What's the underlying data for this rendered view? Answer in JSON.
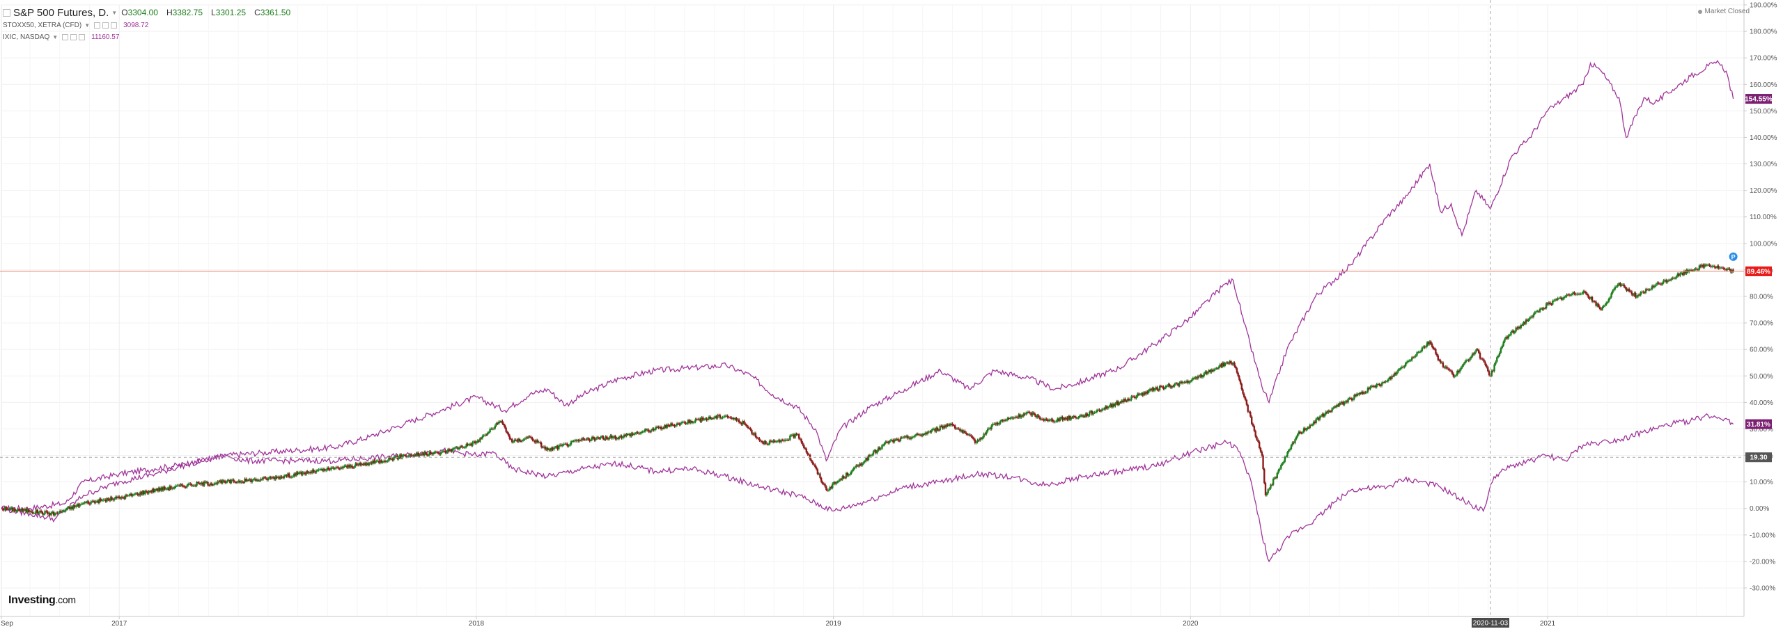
{
  "legend": {
    "main": {
      "symbol": "S&P 500 Futures, D",
      "open_key": "O",
      "open": "3304.00",
      "high_key": "H",
      "high": "3382.75",
      "low_key": "L",
      "low": "3301.25",
      "close_key": "C",
      "close": "3361.50"
    },
    "compare": [
      {
        "symbol": "STOXX50, XETRA (CFD)",
        "value": "3098.72"
      },
      {
        "symbol": "IXIC, NASDAQ",
        "value": "11160.57"
      }
    ]
  },
  "market_status": "Market Closed",
  "watermark": {
    "brand": "Investing",
    "domain": ".com"
  },
  "crosshair_date": "2020-11-03",
  "colors": {
    "compare_line": "#a0339a",
    "candle_up": "#1b7d1b",
    "candle_down": "#8b1a1a",
    "last_price_line": "#e8907a",
    "red_badge": "#e81b1b",
    "purple_badge": "#7d1f72",
    "gray_badge": "#555555"
  },
  "chart_data": {
    "type": "line",
    "y_unit": "%",
    "ylim": [
      -30,
      190
    ],
    "y_ticks": [
      "190.00%",
      "180.00%",
      "170.00%",
      "160.00%",
      "150.00%",
      "140.00%",
      "130.00%",
      "120.00%",
      "110.00%",
      "100.00%",
      "90.00%",
      "80.00%",
      "70.00%",
      "60.00%",
      "50.00%",
      "40.00%",
      "30.00%",
      "20.00%",
      "10.00%",
      "0.00%",
      "-10.00%",
      "-20.00%",
      "-30.00%"
    ],
    "x_range": [
      2016.67,
      2021.55
    ],
    "x_ticks": [
      {
        "t": 2016.67,
        "label": "Sep"
      },
      {
        "t": 2017.0,
        "label": "2017"
      },
      {
        "t": 2018.0,
        "label": "2018"
      },
      {
        "t": 2019.0,
        "label": "2019"
      },
      {
        "t": 2020.0,
        "label": "2020"
      },
      {
        "t": 2021.0,
        "label": "2021"
      }
    ],
    "grid": true,
    "series": [
      {
        "name": "IXIC, NASDAQ",
        "style": "line",
        "points": [
          [
            2016.67,
            0
          ],
          [
            2016.75,
            0
          ],
          [
            2016.85,
            2
          ],
          [
            2016.9,
            10
          ],
          [
            2017.0,
            13
          ],
          [
            2017.1,
            15
          ],
          [
            2017.2,
            17
          ],
          [
            2017.3,
            20
          ],
          [
            2017.4,
            21
          ],
          [
            2017.5,
            22
          ],
          [
            2017.6,
            23
          ],
          [
            2017.7,
            27
          ],
          [
            2017.8,
            32
          ],
          [
            2017.9,
            37
          ],
          [
            2018.0,
            42
          ],
          [
            2018.08,
            37
          ],
          [
            2018.15,
            43
          ],
          [
            2018.2,
            45
          ],
          [
            2018.25,
            39
          ],
          [
            2018.3,
            43
          ],
          [
            2018.4,
            49
          ],
          [
            2018.5,
            52
          ],
          [
            2018.6,
            53
          ],
          [
            2018.7,
            54
          ],
          [
            2018.77,
            50
          ],
          [
            2018.83,
            43
          ],
          [
            2018.9,
            38
          ],
          [
            2018.95,
            30
          ],
          [
            2018.98,
            18
          ],
          [
            2019.02,
            30
          ],
          [
            2019.1,
            38
          ],
          [
            2019.2,
            45
          ],
          [
            2019.3,
            52
          ],
          [
            2019.38,
            45
          ],
          [
            2019.45,
            52
          ],
          [
            2019.55,
            49
          ],
          [
            2019.62,
            45
          ],
          [
            2019.7,
            48
          ],
          [
            2019.8,
            53
          ],
          [
            2019.9,
            62
          ],
          [
            2020.0,
            72
          ],
          [
            2020.1,
            85
          ],
          [
            2020.12,
            86
          ],
          [
            2020.15,
            70
          ],
          [
            2020.2,
            46
          ],
          [
            2020.22,
            40
          ],
          [
            2020.27,
            60
          ],
          [
            2020.35,
            80
          ],
          [
            2020.45,
            92
          ],
          [
            2020.55,
            110
          ],
          [
            2020.6,
            117
          ],
          [
            2020.67,
            130
          ],
          [
            2020.7,
            112
          ],
          [
            2020.73,
            115
          ],
          [
            2020.76,
            103
          ],
          [
            2020.8,
            120
          ],
          [
            2020.84,
            113
          ],
          [
            2020.9,
            133
          ],
          [
            2020.95,
            140
          ],
          [
            2021.0,
            150
          ],
          [
            2021.05,
            155
          ],
          [
            2021.1,
            160
          ],
          [
            2021.12,
            168
          ],
          [
            2021.15,
            165
          ],
          [
            2021.2,
            155
          ],
          [
            2021.22,
            140
          ],
          [
            2021.27,
            155
          ],
          [
            2021.3,
            153
          ],
          [
            2021.35,
            158
          ],
          [
            2021.4,
            163
          ],
          [
            2021.45,
            167
          ],
          [
            2021.48,
            168
          ],
          [
            2021.5,
            165
          ],
          [
            2021.52,
            154.55
          ]
        ]
      },
      {
        "name": "S&P 500 Futures",
        "style": "candles",
        "points": [
          [
            2016.67,
            0
          ],
          [
            2016.75,
            -1
          ],
          [
            2016.82,
            -2
          ],
          [
            2016.9,
            2
          ],
          [
            2017.0,
            4
          ],
          [
            2017.1,
            7
          ],
          [
            2017.2,
            9
          ],
          [
            2017.3,
            10
          ],
          [
            2017.4,
            11
          ],
          [
            2017.5,
            13
          ],
          [
            2017.6,
            15
          ],
          [
            2017.7,
            17
          ],
          [
            2017.8,
            20
          ],
          [
            2017.9,
            21
          ],
          [
            2018.0,
            25
          ],
          [
            2018.07,
            33
          ],
          [
            2018.1,
            25
          ],
          [
            2018.15,
            27
          ],
          [
            2018.2,
            22
          ],
          [
            2018.3,
            26
          ],
          [
            2018.4,
            27
          ],
          [
            2018.5,
            30
          ],
          [
            2018.6,
            33
          ],
          [
            2018.7,
            35
          ],
          [
            2018.75,
            32
          ],
          [
            2018.8,
            25
          ],
          [
            2018.85,
            25
          ],
          [
            2018.9,
            28
          ],
          [
            2018.98,
            7
          ],
          [
            2019.05,
            14
          ],
          [
            2019.15,
            25
          ],
          [
            2019.25,
            28
          ],
          [
            2019.33,
            32
          ],
          [
            2019.4,
            25
          ],
          [
            2019.45,
            32
          ],
          [
            2019.55,
            36
          ],
          [
            2019.6,
            33
          ],
          [
            2019.7,
            35
          ],
          [
            2019.8,
            40
          ],
          [
            2019.9,
            45
          ],
          [
            2020.0,
            48
          ],
          [
            2020.1,
            55
          ],
          [
            2020.12,
            55
          ],
          [
            2020.15,
            42
          ],
          [
            2020.2,
            20
          ],
          [
            2020.21,
            5
          ],
          [
            2020.25,
            15
          ],
          [
            2020.3,
            28
          ],
          [
            2020.4,
            38
          ],
          [
            2020.5,
            45
          ],
          [
            2020.55,
            48
          ],
          [
            2020.62,
            57
          ],
          [
            2020.67,
            63
          ],
          [
            2020.7,
            55
          ],
          [
            2020.74,
            50
          ],
          [
            2020.8,
            60
          ],
          [
            2020.84,
            50
          ],
          [
            2020.88,
            64
          ],
          [
            2020.95,
            72
          ],
          [
            2021.0,
            77
          ],
          [
            2021.05,
            80
          ],
          [
            2021.1,
            82
          ],
          [
            2021.15,
            75
          ],
          [
            2021.2,
            85
          ],
          [
            2021.25,
            80
          ],
          [
            2021.3,
            84
          ],
          [
            2021.35,
            87
          ],
          [
            2021.4,
            90
          ],
          [
            2021.45,
            92
          ],
          [
            2021.5,
            90
          ],
          [
            2021.52,
            89.46
          ]
        ]
      },
      {
        "name": "STOXX50, XETRA (CFD)",
        "style": "line",
        "points": [
          [
            2016.67,
            0
          ],
          [
            2016.75,
            -2
          ],
          [
            2016.82,
            -4
          ],
          [
            2016.9,
            5
          ],
          [
            2017.0,
            10
          ],
          [
            2017.1,
            13
          ],
          [
            2017.2,
            17
          ],
          [
            2017.3,
            20
          ],
          [
            2017.35,
            18
          ],
          [
            2017.5,
            18
          ],
          [
            2017.6,
            18
          ],
          [
            2017.7,
            19
          ],
          [
            2017.8,
            20
          ],
          [
            2017.9,
            22
          ],
          [
            2018.0,
            20
          ],
          [
            2018.05,
            21
          ],
          [
            2018.1,
            15
          ],
          [
            2018.2,
            12
          ],
          [
            2018.3,
            15
          ],
          [
            2018.4,
            17
          ],
          [
            2018.5,
            14
          ],
          [
            2018.6,
            15
          ],
          [
            2018.7,
            12
          ],
          [
            2018.8,
            8
          ],
          [
            2018.9,
            5
          ],
          [
            2019.0,
            -1
          ],
          [
            2019.1,
            3
          ],
          [
            2019.2,
            8
          ],
          [
            2019.3,
            10
          ],
          [
            2019.4,
            13
          ],
          [
            2019.5,
            12
          ],
          [
            2019.55,
            10
          ],
          [
            2019.6,
            9
          ],
          [
            2019.7,
            12
          ],
          [
            2019.8,
            14
          ],
          [
            2019.9,
            16
          ],
          [
            2020.0,
            21
          ],
          [
            2020.1,
            25
          ],
          [
            2020.13,
            23
          ],
          [
            2020.17,
            10
          ],
          [
            2020.2,
            -10
          ],
          [
            2020.22,
            -20
          ],
          [
            2020.28,
            -10
          ],
          [
            2020.35,
            -4
          ],
          [
            2020.4,
            2
          ],
          [
            2020.45,
            7
          ],
          [
            2020.55,
            8
          ],
          [
            2020.6,
            11
          ],
          [
            2020.65,
            10
          ],
          [
            2020.7,
            8
          ],
          [
            2020.75,
            4
          ],
          [
            2020.82,
            -1
          ],
          [
            2020.85,
            12
          ],
          [
            2020.9,
            16
          ],
          [
            2020.95,
            18
          ],
          [
            2021.0,
            20
          ],
          [
            2021.05,
            18
          ],
          [
            2021.1,
            24
          ],
          [
            2021.15,
            25
          ],
          [
            2021.2,
            26
          ],
          [
            2021.3,
            30
          ],
          [
            2021.35,
            32
          ],
          [
            2021.4,
            33
          ],
          [
            2021.45,
            35
          ],
          [
            2021.5,
            34
          ],
          [
            2021.52,
            31.81
          ]
        ]
      }
    ],
    "price_badges": [
      {
        "label": "154.55%",
        "y": 154.55,
        "color_key": "purple_badge"
      },
      {
        "label": "89.46%",
        "y": 89.46,
        "color_key": "red_badge"
      },
      {
        "label": "31.81%",
        "y": 31.81,
        "color_key": "purple_badge"
      },
      {
        "label": "19.30",
        "y": 19.3,
        "color_key": "gray_badge"
      }
    ],
    "last_price_line_y": 89.46,
    "crosshair_y": 19.3,
    "crosshair_t": 2020.84,
    "marker": {
      "label": "P",
      "t": 2021.52,
      "y": 95
    }
  }
}
